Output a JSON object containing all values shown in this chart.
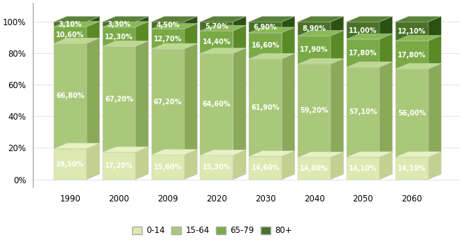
{
  "years": [
    "1990",
    "2000",
    "2009",
    "2020",
    "2030",
    "2040",
    "2050",
    "2060"
  ],
  "age_0_14": [
    19.5,
    17.2,
    15.6,
    15.3,
    14.6,
    14.0,
    14.1,
    14.1
  ],
  "age_15_64": [
    66.8,
    67.2,
    67.2,
    64.6,
    61.9,
    59.2,
    57.1,
    56.0
  ],
  "age_65_79": [
    10.6,
    12.3,
    12.7,
    14.4,
    16.6,
    17.9,
    17.8,
    17.8
  ],
  "age_80plus": [
    3.1,
    3.3,
    4.5,
    5.7,
    6.9,
    8.9,
    11.0,
    12.1
  ],
  "colors": {
    "0_14": "#dce9b0",
    "15_64": "#aac87a",
    "65_79": "#7aaa46",
    "80plus": "#4a7228"
  },
  "side_colors": {
    "0_14": "#c2d090",
    "15_64": "#8aaa5a",
    "65_79": "#5a8a26",
    "80plus": "#2a5210"
  },
  "top_colors": {
    "0_14": "#e8f2c0",
    "15_64": "#bcda90",
    "65_79": "#8aba56",
    "80plus": "#5a8238"
  },
  "legend_labels": [
    "0-14",
    "15-64",
    "65-79",
    "80+"
  ],
  "background_color": "#ffffff",
  "text_color": "white",
  "label_fontsize": 7.0,
  "tick_fontsize": 8.5
}
